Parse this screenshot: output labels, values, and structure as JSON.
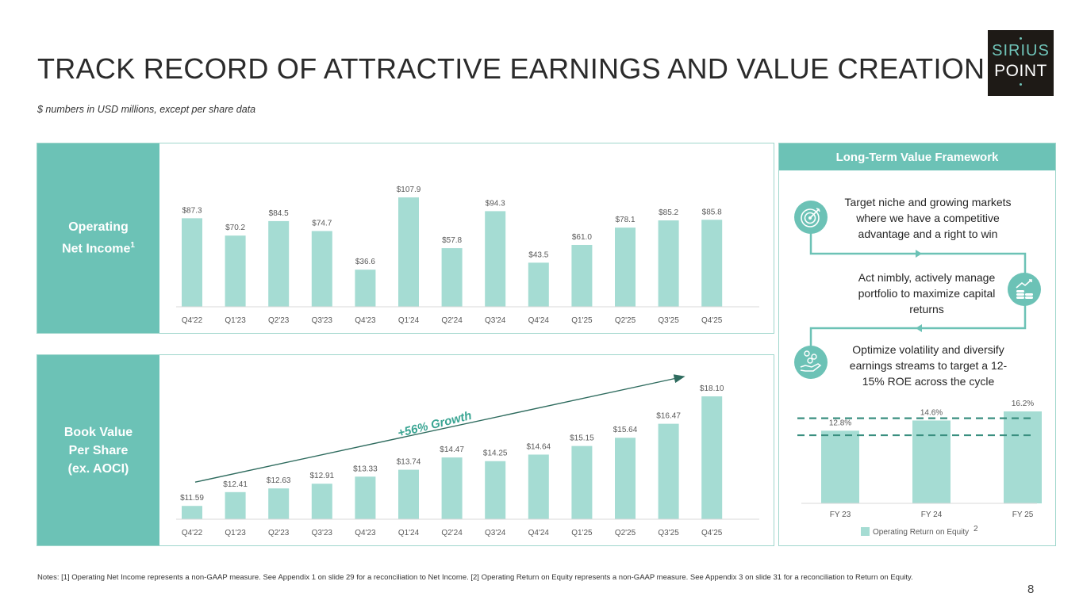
{
  "slide": {
    "title": "TRACK RECORD OF ATTRACTIVE EARNINGS AND VALUE CREATION",
    "subtitle": "$ numbers in USD millions, except per share data",
    "logo_top": "SIRIUS",
    "logo_bottom": "POINT",
    "notes": "Notes: [1] Operating Net Income represents a non-GAAP measure. See Appendix 1 on slide 29 for a reconciliation to Net Income. [2] Operating Return on Equity represents a non-GAAP measure. See Appendix 3 on slide 31 for a reconciliation to Return on Equity.",
    "page_number": "8"
  },
  "panels": {
    "income_label": "Operating",
    "income_label_2": "Net Income",
    "income_sup": "1",
    "bvps_label_1": "Book Value",
    "bvps_label_2": "Per Share",
    "bvps_label_3": "(ex. AOCI)"
  },
  "framework": {
    "header": "Long-Term Value Framework",
    "item1": "Target niche and growing markets where we have a competitive advantage and a right to win",
    "item2": "Act nimbly, actively manage portfolio to maximize capital returns",
    "item3": "Optimize volatility and diversify earnings streams to target a 12-15% ROE across the cycle"
  },
  "colors": {
    "accent": "#6cc2b6",
    "bar": "#a5dcd3",
    "arrow": "#2e6b5e",
    "dash": "#3a8f80"
  },
  "chart_data": [
    {
      "type": "bar",
      "title": "Operating Net Income",
      "categories": [
        "Q4'22",
        "Q1'23",
        "Q2'23",
        "Q3'23",
        "Q4'23",
        "Q1'24",
        "Q2'24",
        "Q3'24",
        "Q4'24",
        "Q1'25",
        "Q2'25",
        "Q3'25",
        "Q4'25"
      ],
      "values": [
        87.3,
        70.2,
        84.5,
        74.7,
        36.6,
        107.9,
        57.8,
        94.3,
        43.5,
        61.0,
        78.1,
        85.2,
        85.8
      ],
      "value_labels": [
        "$87.3",
        "$70.2",
        "$84.5",
        "$74.7",
        "$36.6",
        "$107.9",
        "$57.8",
        "$94.3",
        "$43.5",
        "$61.0",
        "$78.1",
        "$85.2",
        "$85.8"
      ],
      "ylim": [
        0,
        107.9
      ]
    },
    {
      "type": "bar",
      "title": "Book Value Per Share (ex. AOCI)",
      "categories": [
        "Q4'22",
        "Q1'23",
        "Q2'23",
        "Q3'23",
        "Q4'23",
        "Q1'24",
        "Q2'24",
        "Q3'24",
        "Q4'24",
        "Q1'25",
        "Q2'25",
        "Q3'25",
        "Q4'25"
      ],
      "values": [
        11.59,
        12.41,
        12.63,
        12.91,
        13.33,
        13.74,
        14.47,
        14.25,
        14.64,
        15.15,
        15.64,
        16.47,
        18.1
      ],
      "value_labels": [
        "$11.59",
        "$12.41",
        "$12.63",
        "$12.91",
        "$13.33",
        "$13.74",
        "$14.47",
        "$14.25",
        "$14.64",
        "$15.15",
        "$15.64",
        "$16.47",
        "$18.10"
      ],
      "ylim": [
        10.8,
        18.1
      ],
      "annotation": "+56% Growth"
    },
    {
      "type": "bar",
      "title": "Operating Return on Equity",
      "categories": [
        "FY 23",
        "FY 24",
        "FY 25"
      ],
      "values": [
        12.8,
        14.6,
        16.2
      ],
      "value_labels": [
        "12.8%",
        "14.6%",
        "16.2%"
      ],
      "ylim": [
        0,
        16.2
      ],
      "target_range": [
        12,
        15
      ],
      "legend": "Operating Return on Equity",
      "legend_sup": "2"
    }
  ]
}
